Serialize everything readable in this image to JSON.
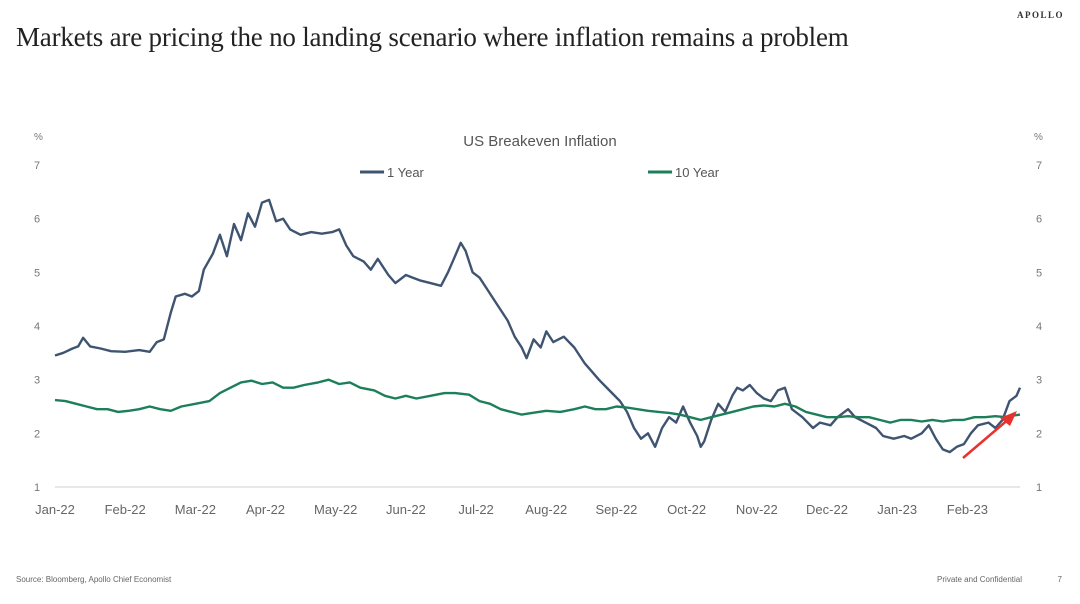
{
  "brand": "APOLLO",
  "page_title": "Markets are pricing the no landing scenario where inflation remains a problem",
  "footer": {
    "source": "Source: Bloomberg, Apollo Chief Economist",
    "confidential": "Private and Confidential",
    "page_number": "7"
  },
  "colors": {
    "one_year": "#3f5470",
    "ten_year": "#1d7f5a",
    "arrow": "#e8322d"
  },
  "chart_data": {
    "type": "line",
    "title": "US Breakeven Inflation",
    "ylabel_left": "%",
    "ylabel_right": "%",
    "ylim": [
      1,
      7
    ],
    "yticks": [
      1,
      2,
      3,
      4,
      5,
      6,
      7
    ],
    "x_tick_labels": [
      "Jan-22",
      "Feb-22",
      "Mar-22",
      "Apr-22",
      "May-22",
      "Jun-22",
      "Jul-22",
      "Aug-22",
      "Sep-22",
      "Oct-22",
      "Nov-22",
      "Dec-22",
      "Jan-23",
      "Feb-23"
    ],
    "x_range_months": [
      0,
      13.75
    ],
    "legend_position": "top",
    "grid": false,
    "series": [
      {
        "name": "1 Year",
        "color": "#3f5470",
        "points": [
          [
            0.0,
            3.45
          ],
          [
            0.12,
            3.5
          ],
          [
            0.25,
            3.58
          ],
          [
            0.33,
            3.62
          ],
          [
            0.4,
            3.78
          ],
          [
            0.5,
            3.62
          ],
          [
            0.65,
            3.58
          ],
          [
            0.8,
            3.53
          ],
          [
            1.0,
            3.52
          ],
          [
            1.2,
            3.55
          ],
          [
            1.35,
            3.52
          ],
          [
            1.45,
            3.7
          ],
          [
            1.55,
            3.75
          ],
          [
            1.65,
            4.25
          ],
          [
            1.72,
            4.55
          ],
          [
            1.85,
            4.6
          ],
          [
            1.95,
            4.55
          ],
          [
            2.05,
            4.65
          ],
          [
            2.12,
            5.05
          ],
          [
            2.25,
            5.35
          ],
          [
            2.35,
            5.7
          ],
          [
            2.45,
            5.3
          ],
          [
            2.55,
            5.9
          ],
          [
            2.65,
            5.6
          ],
          [
            2.75,
            6.1
          ],
          [
            2.85,
            5.85
          ],
          [
            2.95,
            6.3
          ],
          [
            3.05,
            6.35
          ],
          [
            3.15,
            5.95
          ],
          [
            3.25,
            6.0
          ],
          [
            3.35,
            5.8
          ],
          [
            3.5,
            5.7
          ],
          [
            3.65,
            5.75
          ],
          [
            3.8,
            5.72
          ],
          [
            3.95,
            5.75
          ],
          [
            4.05,
            5.8
          ],
          [
            4.15,
            5.5
          ],
          [
            4.25,
            5.3
          ],
          [
            4.4,
            5.2
          ],
          [
            4.5,
            5.05
          ],
          [
            4.6,
            5.25
          ],
          [
            4.75,
            4.95
          ],
          [
            4.85,
            4.8
          ],
          [
            5.0,
            4.95
          ],
          [
            5.1,
            4.9
          ],
          [
            5.2,
            4.85
          ],
          [
            5.35,
            4.8
          ],
          [
            5.5,
            4.75
          ],
          [
            5.6,
            5.0
          ],
          [
            5.7,
            5.3
          ],
          [
            5.78,
            5.55
          ],
          [
            5.85,
            5.4
          ],
          [
            5.95,
            5.0
          ],
          [
            6.05,
            4.9
          ],
          [
            6.15,
            4.7
          ],
          [
            6.3,
            4.4
          ],
          [
            6.45,
            4.1
          ],
          [
            6.55,
            3.8
          ],
          [
            6.65,
            3.6
          ],
          [
            6.72,
            3.4
          ],
          [
            6.82,
            3.75
          ],
          [
            6.92,
            3.6
          ],
          [
            7.0,
            3.9
          ],
          [
            7.1,
            3.7
          ],
          [
            7.25,
            3.8
          ],
          [
            7.4,
            3.6
          ],
          [
            7.55,
            3.3
          ],
          [
            7.65,
            3.15
          ],
          [
            7.75,
            3.0
          ],
          [
            7.9,
            2.8
          ],
          [
            8.05,
            2.6
          ],
          [
            8.15,
            2.4
          ],
          [
            8.25,
            2.1
          ],
          [
            8.35,
            1.9
          ],
          [
            8.45,
            2.0
          ],
          [
            8.55,
            1.75
          ],
          [
            8.65,
            2.1
          ],
          [
            8.75,
            2.3
          ],
          [
            8.85,
            2.2
          ],
          [
            8.95,
            2.5
          ],
          [
            9.05,
            2.2
          ],
          [
            9.15,
            1.95
          ],
          [
            9.2,
            1.75
          ],
          [
            9.25,
            1.85
          ],
          [
            9.35,
            2.25
          ],
          [
            9.45,
            2.55
          ],
          [
            9.55,
            2.4
          ],
          [
            9.65,
            2.7
          ],
          [
            9.72,
            2.85
          ],
          [
            9.8,
            2.8
          ],
          [
            9.9,
            2.9
          ],
          [
            10.0,
            2.75
          ],
          [
            10.1,
            2.65
          ],
          [
            10.2,
            2.6
          ],
          [
            10.3,
            2.8
          ],
          [
            10.4,
            2.85
          ],
          [
            10.5,
            2.45
          ],
          [
            10.65,
            2.3
          ],
          [
            10.8,
            2.1
          ],
          [
            10.9,
            2.2
          ],
          [
            11.05,
            2.15
          ],
          [
            11.15,
            2.3
          ],
          [
            11.3,
            2.45
          ],
          [
            11.4,
            2.3
          ],
          [
            11.55,
            2.2
          ],
          [
            11.7,
            2.1
          ],
          [
            11.8,
            1.95
          ],
          [
            11.95,
            1.9
          ],
          [
            12.1,
            1.95
          ],
          [
            12.2,
            1.9
          ],
          [
            12.35,
            2.0
          ],
          [
            12.45,
            2.15
          ],
          [
            12.55,
            1.9
          ],
          [
            12.65,
            1.7
          ],
          [
            12.75,
            1.65
          ],
          [
            12.85,
            1.75
          ],
          [
            12.95,
            1.8
          ],
          [
            13.05,
            2.0
          ],
          [
            13.15,
            2.15
          ],
          [
            13.3,
            2.2
          ],
          [
            13.4,
            2.1
          ],
          [
            13.5,
            2.25
          ],
          [
            13.6,
            2.6
          ],
          [
            13.7,
            2.7
          ],
          [
            13.75,
            2.85
          ]
        ]
      },
      {
        "name": "10 Year",
        "color": "#1d7f5a",
        "points": [
          [
            0.0,
            2.62
          ],
          [
            0.15,
            2.6
          ],
          [
            0.3,
            2.55
          ],
          [
            0.45,
            2.5
          ],
          [
            0.6,
            2.45
          ],
          [
            0.75,
            2.45
          ],
          [
            0.9,
            2.4
          ],
          [
            1.05,
            2.42
          ],
          [
            1.2,
            2.45
          ],
          [
            1.35,
            2.5
          ],
          [
            1.5,
            2.45
          ],
          [
            1.65,
            2.42
          ],
          [
            1.8,
            2.5
          ],
          [
            2.0,
            2.55
          ],
          [
            2.2,
            2.6
          ],
          [
            2.35,
            2.75
          ],
          [
            2.5,
            2.85
          ],
          [
            2.65,
            2.95
          ],
          [
            2.8,
            2.98
          ],
          [
            2.95,
            2.92
          ],
          [
            3.1,
            2.95
          ],
          [
            3.25,
            2.85
          ],
          [
            3.4,
            2.85
          ],
          [
            3.55,
            2.9
          ],
          [
            3.75,
            2.95
          ],
          [
            3.9,
            3.0
          ],
          [
            4.05,
            2.92
          ],
          [
            4.2,
            2.95
          ],
          [
            4.35,
            2.85
          ],
          [
            4.55,
            2.8
          ],
          [
            4.7,
            2.7
          ],
          [
            4.85,
            2.65
          ],
          [
            5.0,
            2.7
          ],
          [
            5.15,
            2.65
          ],
          [
            5.35,
            2.7
          ],
          [
            5.55,
            2.75
          ],
          [
            5.7,
            2.75
          ],
          [
            5.9,
            2.72
          ],
          [
            6.05,
            2.6
          ],
          [
            6.2,
            2.55
          ],
          [
            6.35,
            2.45
          ],
          [
            6.5,
            2.4
          ],
          [
            6.65,
            2.35
          ],
          [
            6.8,
            2.38
          ],
          [
            7.0,
            2.42
          ],
          [
            7.2,
            2.4
          ],
          [
            7.4,
            2.45
          ],
          [
            7.55,
            2.5
          ],
          [
            7.7,
            2.45
          ],
          [
            7.85,
            2.45
          ],
          [
            8.0,
            2.5
          ],
          [
            8.15,
            2.48
          ],
          [
            8.3,
            2.45
          ],
          [
            8.45,
            2.42
          ],
          [
            8.6,
            2.4
          ],
          [
            8.75,
            2.38
          ],
          [
            8.9,
            2.35
          ],
          [
            9.05,
            2.3
          ],
          [
            9.2,
            2.25
          ],
          [
            9.35,
            2.3
          ],
          [
            9.5,
            2.35
          ],
          [
            9.65,
            2.4
          ],
          [
            9.8,
            2.45
          ],
          [
            9.95,
            2.5
          ],
          [
            10.1,
            2.52
          ],
          [
            10.25,
            2.5
          ],
          [
            10.4,
            2.55
          ],
          [
            10.55,
            2.5
          ],
          [
            10.7,
            2.4
          ],
          [
            10.85,
            2.35
          ],
          [
            11.0,
            2.3
          ],
          [
            11.15,
            2.3
          ],
          [
            11.3,
            2.32
          ],
          [
            11.45,
            2.3
          ],
          [
            11.6,
            2.3
          ],
          [
            11.75,
            2.25
          ],
          [
            11.9,
            2.2
          ],
          [
            12.05,
            2.25
          ],
          [
            12.2,
            2.25
          ],
          [
            12.35,
            2.22
          ],
          [
            12.5,
            2.25
          ],
          [
            12.65,
            2.22
          ],
          [
            12.8,
            2.25
          ],
          [
            12.95,
            2.25
          ],
          [
            13.1,
            2.3
          ],
          [
            13.25,
            2.3
          ],
          [
            13.4,
            2.32
          ],
          [
            13.55,
            2.3
          ],
          [
            13.65,
            2.33
          ],
          [
            13.75,
            2.35
          ]
        ]
      }
    ]
  }
}
